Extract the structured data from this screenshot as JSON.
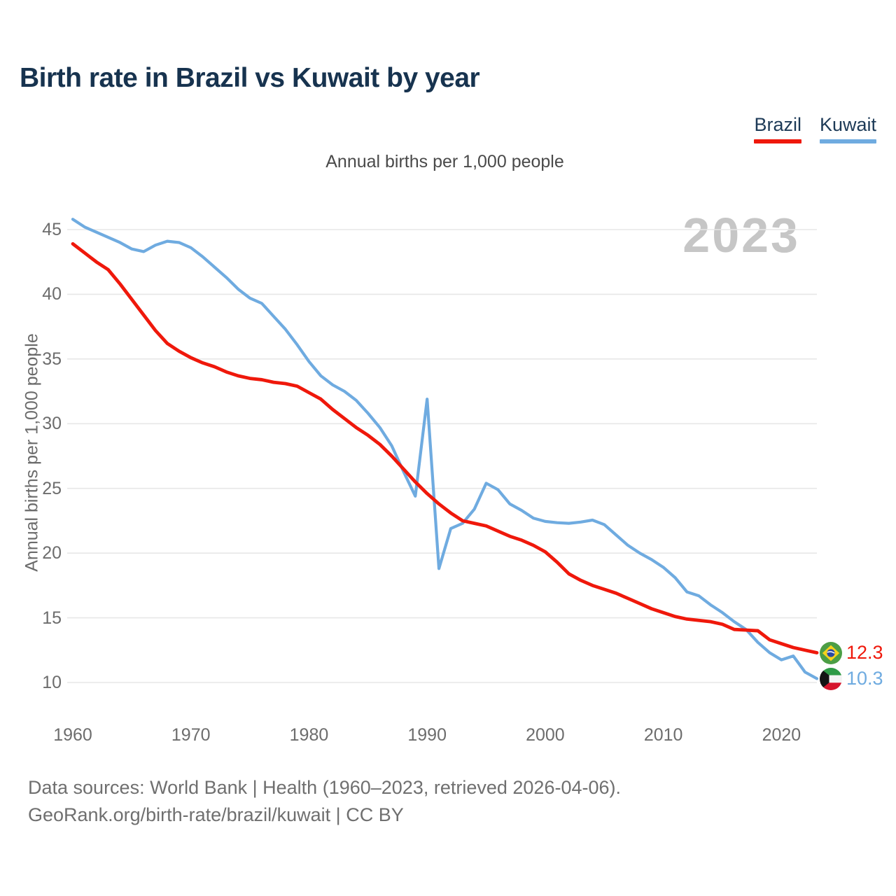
{
  "page": {
    "title": "Birth rate in Brazil vs Kuwait by year",
    "footer_line1": "Data sources: World Bank | Health (1960–2023, retrieved 2026-04-06).",
    "footer_line2": "GeoRank.org/birth-rate/brazil/kuwait | CC BY"
  },
  "legend": {
    "items": [
      {
        "label": "Brazil",
        "color": "#ef180b"
      },
      {
        "label": "Kuwait",
        "color": "#6fabe0"
      }
    ]
  },
  "chart_data": {
    "type": "line",
    "title": "Birth rate in Brazil vs Kuwait by year",
    "subtitle": "Annual births per 1,000 people",
    "ylabel": "Annual births per 1,000 people",
    "watermark": "2023",
    "grid": true,
    "legend_position": "top-right",
    "xlim": [
      1960,
      2023
    ],
    "ylim": [
      10,
      45
    ],
    "xticks": [
      1960,
      1970,
      1980,
      1990,
      2000,
      2010,
      2020
    ],
    "yticks": [
      45,
      40,
      35,
      30,
      25,
      20,
      15,
      10
    ],
    "x": [
      1960,
      1961,
      1962,
      1963,
      1964,
      1965,
      1966,
      1967,
      1968,
      1969,
      1970,
      1971,
      1972,
      1973,
      1974,
      1975,
      1976,
      1977,
      1978,
      1979,
      1980,
      1981,
      1982,
      1983,
      1984,
      1985,
      1986,
      1987,
      1988,
      1989,
      1990,
      1991,
      1992,
      1993,
      1994,
      1995,
      1996,
      1997,
      1998,
      1999,
      2000,
      2001,
      2002,
      2003,
      2004,
      2005,
      2006,
      2007,
      2008,
      2009,
      2010,
      2011,
      2012,
      2013,
      2014,
      2015,
      2016,
      2017,
      2018,
      2019,
      2020,
      2021,
      2022,
      2023
    ],
    "series": [
      {
        "name": "Brazil",
        "color": "#ef180b",
        "end_label": "12.3",
        "flag": "brazil-flag-icon",
        "values": [
          43.9,
          43.2,
          42.5,
          41.9,
          40.8,
          39.6,
          38.4,
          37.2,
          36.2,
          35.6,
          35.1,
          34.7,
          34.4,
          34.0,
          33.7,
          33.5,
          33.4,
          33.2,
          33.1,
          32.9,
          32.4,
          31.9,
          31.1,
          30.4,
          29.7,
          29.1,
          28.4,
          27.5,
          26.5,
          25.5,
          24.6,
          23.8,
          23.1,
          22.5,
          22.3,
          22.1,
          21.7,
          21.3,
          21.0,
          20.6,
          20.1,
          19.3,
          18.4,
          17.9,
          17.5,
          17.2,
          16.9,
          16.5,
          16.1,
          15.7,
          15.4,
          15.1,
          14.9,
          14.8,
          14.7,
          14.5,
          14.1,
          14.05,
          14.0,
          13.3,
          13.0,
          12.7,
          12.5,
          12.3
        ]
      },
      {
        "name": "Kuwait",
        "color": "#6fabe0",
        "end_label": "10.3",
        "flag": "kuwait-flag-icon",
        "values": [
          45.8,
          45.2,
          44.8,
          44.4,
          44.0,
          43.5,
          43.3,
          43.8,
          44.1,
          44.0,
          43.6,
          42.9,
          42.1,
          41.3,
          40.4,
          39.7,
          39.3,
          38.3,
          37.3,
          36.1,
          34.8,
          33.7,
          33.0,
          32.5,
          31.8,
          30.8,
          29.7,
          28.3,
          26.3,
          24.4,
          31.9,
          18.8,
          21.9,
          22.3,
          23.4,
          25.4,
          24.9,
          23.8,
          23.3,
          22.7,
          22.45,
          22.35,
          22.3,
          22.4,
          22.55,
          22.2,
          21.4,
          20.6,
          20.0,
          19.5,
          18.9,
          18.1,
          17.0,
          16.7,
          16.0,
          15.4,
          14.7,
          14.1,
          13.1,
          12.3,
          11.75,
          12.05,
          10.8,
          10.3
        ]
      }
    ]
  }
}
